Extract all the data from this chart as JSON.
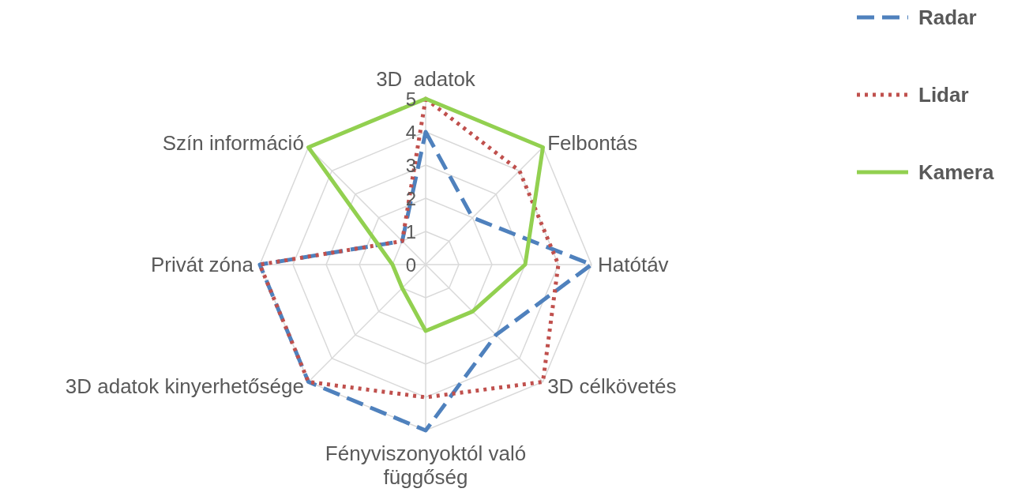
{
  "chart_data": {
    "type": "radar",
    "categories": [
      "3D  adatok",
      "Felbontás",
      "Hatótáv",
      "3D célkövetés",
      "Fényviszonyoktól való függőség",
      "3D adatok kinyerhetősége",
      "Privát zóna",
      "Szín információ"
    ],
    "series": [
      {
        "name": "Radar",
        "color": "#4f81bd",
        "line_style": "dashed",
        "values": [
          4,
          2,
          5,
          3,
          5,
          5,
          5,
          1
        ]
      },
      {
        "name": "Lidar",
        "color": "#c0504d",
        "line_style": "dotted",
        "values": [
          5,
          4,
          4,
          5,
          4,
          5,
          5,
          1
        ]
      },
      {
        "name": "Kamera",
        "color": "#92d050",
        "line_style": "solid",
        "values": [
          5,
          5,
          3,
          2,
          2,
          1,
          1,
          5
        ]
      }
    ],
    "ylim": [
      0,
      5
    ],
    "yticks": [
      0,
      1,
      2,
      3,
      4,
      5
    ],
    "grid": true,
    "legend": "top right",
    "marker": "none"
  }
}
